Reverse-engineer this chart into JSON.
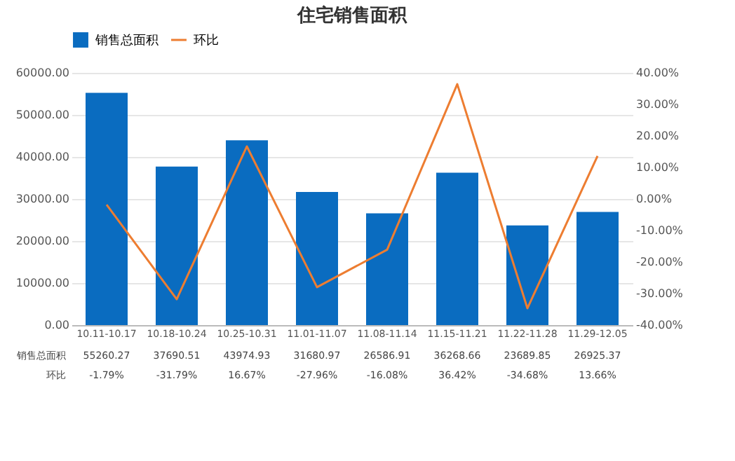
{
  "chart_data": {
    "type": "bar",
    "title": "住宅销售面积",
    "categories": [
      "10.11-10.17",
      "10.18-10.24",
      "10.25-10.31",
      "11.01-11.07",
      "11.08-11.14",
      "11.15-11.21",
      "11.22-11.28",
      "11.29-12.05"
    ],
    "series": [
      {
        "name": "销售总面积",
        "color": "#0a6cc0",
        "values": [
          55260.27,
          37690.51,
          43974.93,
          31680.97,
          26586.91,
          36268.66,
          23689.85,
          26925.37
        ],
        "value_labels": [
          "55260.27",
          "37690.51",
          "43974.93",
          "31680.97",
          "26586.91",
          "36268.66",
          "23689.85",
          "26925.37"
        ]
      },
      {
        "name": "环比",
        "type": "line",
        "axis": "y2",
        "color": "#ed7d31",
        "values": [
          -1.79,
          -31.79,
          16.67,
          -27.96,
          -16.08,
          36.42,
          -34.68,
          13.66
        ],
        "value_labels": [
          "-1.79%",
          "-31.79%",
          "16.67%",
          "-27.96%",
          "-16.08%",
          "36.42%",
          "-34.68%",
          "13.66%"
        ]
      }
    ],
    "ylim": [
      0,
      60000
    ],
    "yticks": [
      {
        "value": 0,
        "label": "0.00"
      },
      {
        "value": 10000,
        "label": "10000.00"
      },
      {
        "value": 20000,
        "label": "20000.00"
      },
      {
        "value": 30000,
        "label": "30000.00"
      },
      {
        "value": 40000,
        "label": "40000.00"
      },
      {
        "value": 50000,
        "label": "50000.00"
      },
      {
        "value": 60000,
        "label": "60000.00"
      }
    ],
    "y2lim": [
      -40,
      40
    ],
    "y2ticks": [
      {
        "value": -40,
        "label": "-40.00%"
      },
      {
        "value": -30,
        "label": "-30.00%"
      },
      {
        "value": -20,
        "label": "-20.00%"
      },
      {
        "value": -10,
        "label": "-10.00%"
      },
      {
        "value": 0,
        "label": "0.00%"
      },
      {
        "value": 10,
        "label": "10.00%"
      },
      {
        "value": 20,
        "label": "20.00%"
      },
      {
        "value": 30,
        "label": "30.00%"
      },
      {
        "value": 40,
        "label": "40.00%"
      }
    ],
    "grid": "y",
    "legend": "top",
    "marker": "none",
    "line_style": "solid"
  }
}
